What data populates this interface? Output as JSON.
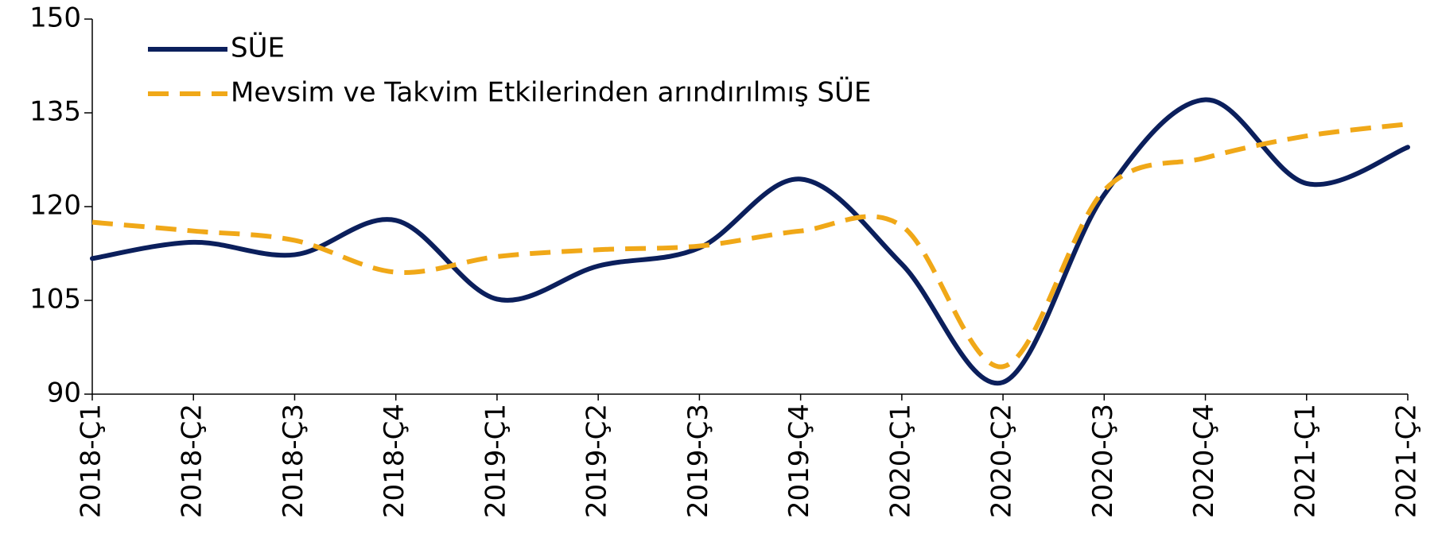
{
  "chart_data": {
    "type": "line",
    "categories": [
      "2018-Ç1",
      "2018-Ç2",
      "2018-Ç3",
      "2018-Ç4",
      "2019-Ç1",
      "2019-Ç2",
      "2019-Ç3",
      "2019-Ç4",
      "2020-Ç1",
      "2020-Ç2",
      "2020-Ç3",
      "2020-Ç4",
      "2021-Ç1",
      "2021-Ç2"
    ],
    "series": [
      {
        "name": "SÜE",
        "color": "#0b1f5c",
        "dash": false,
        "values": [
          111.7,
          114.3,
          112.3,
          117.8,
          105.2,
          110.5,
          113.4,
          124.4,
          110.8,
          91.9,
          121.9,
          137.1,
          123.7,
          129.5
        ]
      },
      {
        "name": "Mevsim ve Takvim Etkilerinden arındırılmış SÜE",
        "color": "#f0a818",
        "dash": true,
        "values": [
          117.5,
          116.1,
          114.6,
          109.5,
          112.0,
          113.1,
          113.7,
          116.1,
          116.9,
          94.4,
          122.6,
          127.8,
          131.3,
          133.2
        ]
      }
    ],
    "ylim": [
      90,
      150
    ],
    "yticks": [
      90,
      105,
      120,
      135,
      150
    ],
    "smooth": true,
    "legend": "upper left"
  }
}
